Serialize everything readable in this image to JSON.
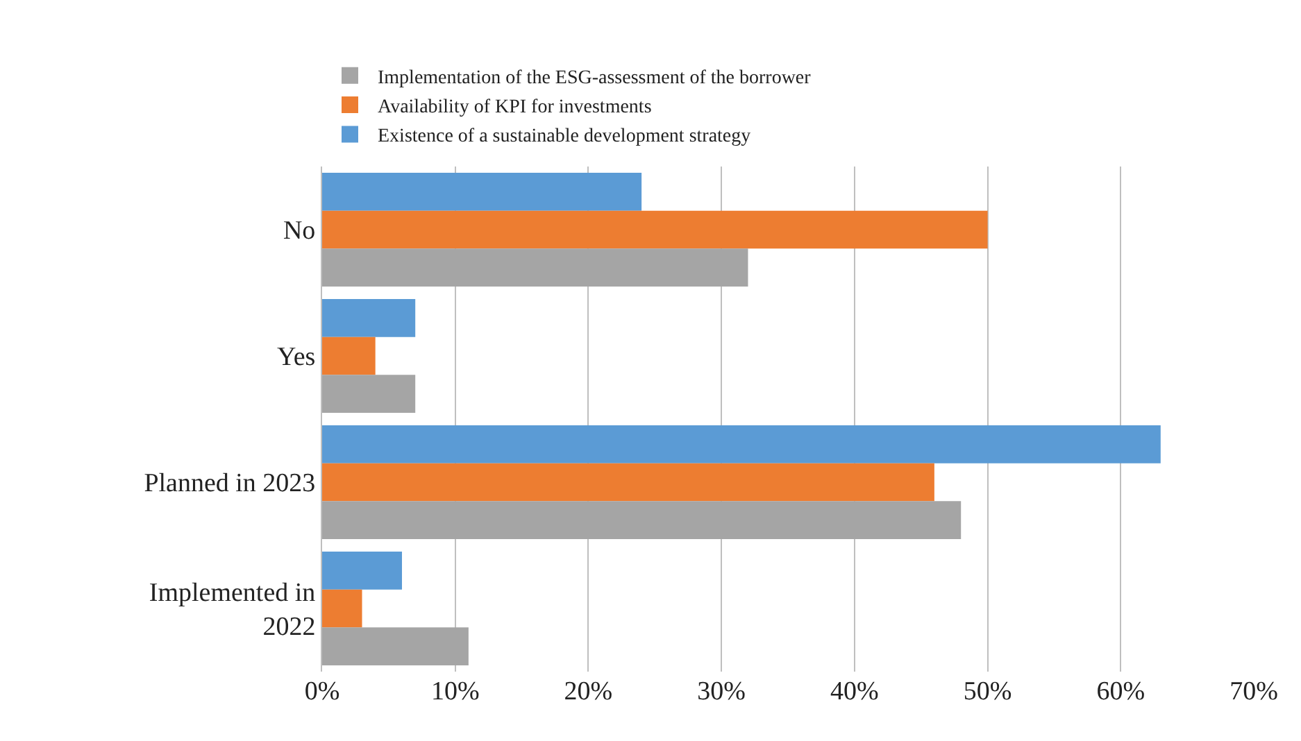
{
  "chart_data": {
    "type": "bar",
    "orientation": "horizontal",
    "categories": [
      "No",
      "Yes",
      "Planned in 2023",
      "Implemented in 2022"
    ],
    "series": [
      {
        "name": "Existence of a sustainable development strategy",
        "color": "#5b9bd5",
        "values": [
          24,
          7,
          63,
          6
        ]
      },
      {
        "name": "Availability of KPI for investments",
        "color": "#ed7d31",
        "values": [
          50,
          4,
          46,
          3
        ]
      },
      {
        "name": "Implementation of the ESG-assessment of the borrower",
        "color": "#a5a5a5",
        "values": [
          32,
          7,
          48,
          11
        ]
      }
    ],
    "xlim": [
      0,
      70
    ],
    "xticks": [
      {
        "value": 0,
        "label": "0%"
      },
      {
        "value": 10,
        "label": "10%"
      },
      {
        "value": 20,
        "label": "20%"
      },
      {
        "value": 30,
        "label": "30%"
      },
      {
        "value": 40,
        "label": "40%"
      },
      {
        "value": 50,
        "label": "50%"
      },
      {
        "value": 60,
        "label": "60%"
      },
      {
        "value": 70,
        "label": "70%"
      }
    ],
    "grid": "x",
    "legend": "top left"
  }
}
